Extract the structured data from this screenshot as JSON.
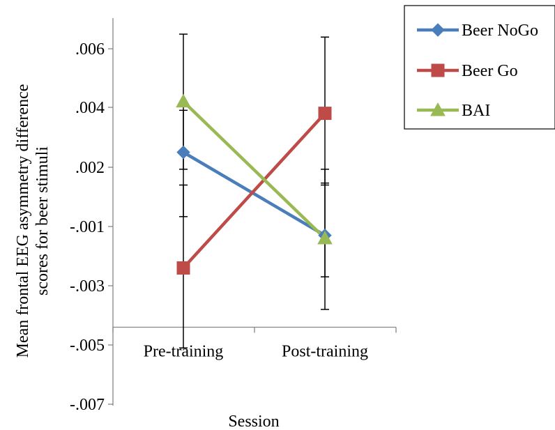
{
  "chart_data": {
    "type": "line",
    "xlabel": "Session",
    "ylabel": [
      "Mean  frontal EEG asymmetry difference",
      "scores for beer stimuli"
    ],
    "categories": [
      "Pre-training",
      "Post-training"
    ],
    "y_ticks": [
      {
        "value": 0.006,
        "label": ".006"
      },
      {
        "value": 0.004,
        "label": ".004"
      },
      {
        "value": 0.002,
        "label": ".002"
      },
      {
        "value": -0.001,
        "label": "-.001"
      },
      {
        "value": -0.003,
        "label": "-.003"
      },
      {
        "value": -0.005,
        "label": "-.005"
      },
      {
        "value": -0.007,
        "label": "-.007"
      }
    ],
    "x_axis_crosses_at": -0.0044,
    "legend_position": "top-right",
    "series": [
      {
        "name": "Beer NoGo",
        "color": "#4A7EBB",
        "marker": "diamond",
        "values": [
          0.0025,
          -0.0013
        ],
        "error_low": [
          -0.0005,
          -0.0038
        ],
        "error_high": [
          0.0039,
          0.0012
        ]
      },
      {
        "name": "Beer Go",
        "color": "#BE4B48",
        "marker": "square",
        "values": [
          -0.0024,
          0.0038
        ],
        "error_low": [
          -0.0051,
          0.0011
        ],
        "error_high": [
          0.0011,
          0.0064
        ]
      },
      {
        "name": "BAI",
        "color": "#98B954",
        "marker": "triangle",
        "values": [
          0.0042,
          -0.0014
        ],
        "error_low": [
          0.0019,
          -0.0027
        ],
        "error_high": [
          0.0065,
          0.0019
        ]
      }
    ]
  }
}
